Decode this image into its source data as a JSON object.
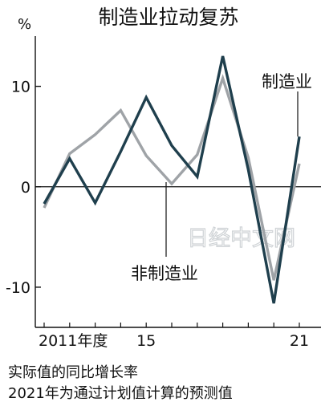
{
  "watermark": "日经中文网",
  "notes": {
    "line1": "实际值的同比增长率",
    "line2": "2021年为通过计划值计算的预测值"
  },
  "chart_data": {
    "type": "line",
    "title": "制造业拉动复苏",
    "y_unit_label": "%",
    "x": [
      2011,
      2012,
      2013,
      2014,
      2015,
      2016,
      2017,
      2018,
      2019,
      2020,
      2021
    ],
    "x_tick_labels": [
      {
        "x": 2011,
        "label": "2011年度"
      },
      {
        "x": 2015,
        "label": "15"
      },
      {
        "x": 2021,
        "label": "21"
      }
    ],
    "y_ticks": [
      {
        "value": 10,
        "label": "10"
      },
      {
        "value": 0,
        "label": "0"
      },
      {
        "value": -10,
        "label": "-10"
      }
    ],
    "xlim": [
      2011,
      2021
    ],
    "ylim": [
      -14,
      15
    ],
    "grid": false,
    "series": [
      {
        "name": "制造业",
        "color": "#1f3f4d",
        "values": [
          -1.7,
          2.8,
          -1.6,
          3.5,
          8.9,
          4.1,
          1.0,
          13.0,
          1.7,
          -11.6,
          5.0
        ]
      },
      {
        "name": "非制造业",
        "color": "#9fa3a7",
        "values": [
          -2.1,
          3.3,
          5.2,
          7.6,
          3.1,
          0.3,
          3.2,
          10.8,
          2.9,
          -9.3,
          2.3
        ]
      }
    ]
  }
}
